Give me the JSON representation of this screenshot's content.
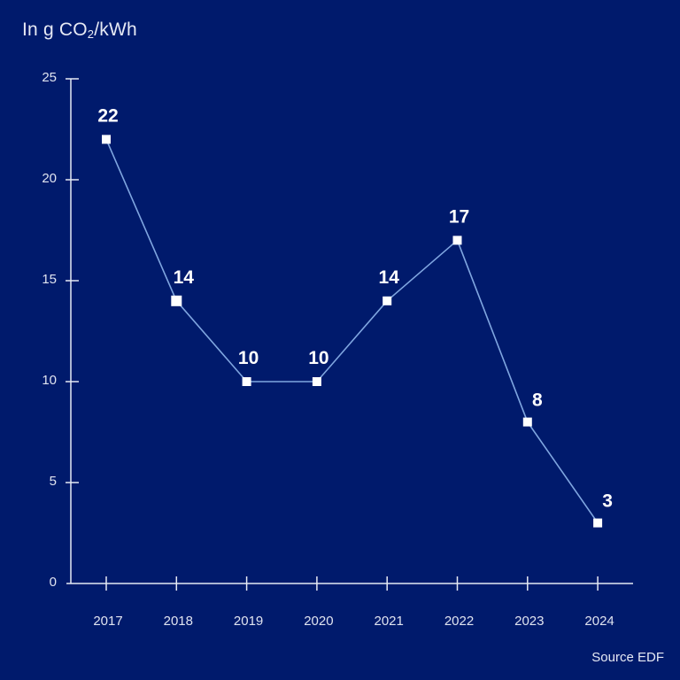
{
  "header": {
    "unit_prefix": "In g CO",
    "unit_sub": "2",
    "unit_suffix": "/kWh"
  },
  "footer": {
    "source": "Source EDF"
  },
  "colors": {
    "background": "#001A6C",
    "line": "#7FA6E0",
    "marker": "#FFFFFF",
    "axis": "#E6E9F4",
    "text": "#E6E9F4"
  },
  "chart_data": {
    "type": "line",
    "title": "",
    "ylabel": "In g CO2/kWh",
    "xlabel": "",
    "categories": [
      "2017",
      "2018",
      "2019",
      "2020",
      "2021",
      "2022",
      "2023",
      "2024"
    ],
    "values": [
      22,
      14,
      10,
      10,
      14,
      17,
      8,
      3
    ],
    "data_labels": [
      "22",
      "14",
      "10",
      "10",
      "14",
      "17",
      "8",
      "3"
    ],
    "yticks": [
      0,
      5,
      10,
      15,
      20,
      25
    ],
    "ylim": [
      0,
      25
    ],
    "grid": false,
    "legend": null,
    "marker": "square",
    "source": "Source EDF"
  }
}
